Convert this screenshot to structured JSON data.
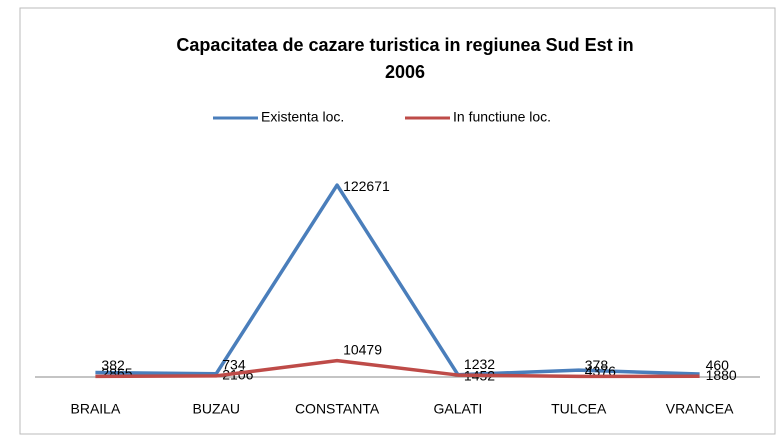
{
  "chart_data": {
    "type": "line",
    "title": "Capacitatea de cazare turistica in regiunea Sud Est in 2006",
    "categories": [
      "BRAILA",
      "BUZAU",
      "CONSTANTA",
      "GALATI",
      "TULCEA",
      "VRANCEA"
    ],
    "series": [
      {
        "name": "Existenta loc.",
        "color": "#4a7ebb",
        "values": [
          2865,
          2106,
          122671,
          1452,
          4376,
          1880
        ]
      },
      {
        "name": "In functiune loc.",
        "color": "#be4b48",
        "values": [
          382,
          734,
          10479,
          1232,
          378,
          460
        ]
      }
    ],
    "ylim": [
      0,
      140000
    ],
    "legend": "top"
  }
}
